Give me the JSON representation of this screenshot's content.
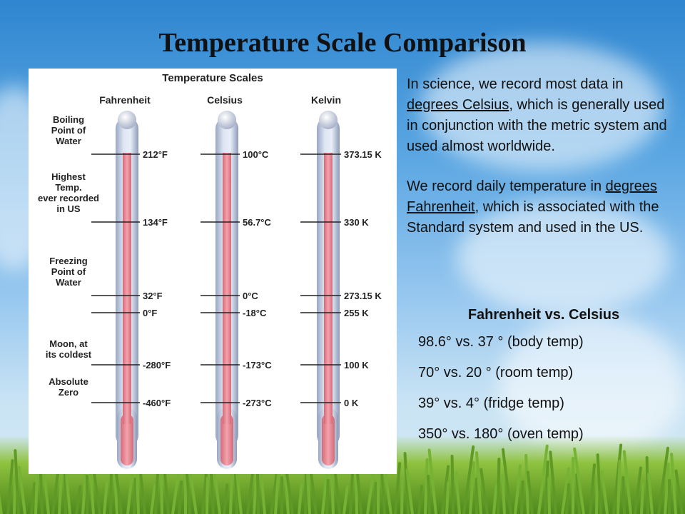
{
  "slide": {
    "title": "Temperature Scale Comparison"
  },
  "diagram": {
    "title": "Temperature Scales",
    "scales": [
      "Fahrenheit",
      "Celsius",
      "Kelvin"
    ],
    "rows": [
      {
        "label": [
          "Boiling",
          "Point of",
          "Water"
        ],
        "values": [
          "212°F",
          "100°C",
          "373.15 K"
        ]
      },
      {
        "label": [
          "Highest",
          "Temp.",
          "ever recorded",
          "in US"
        ],
        "values": [
          "134°F",
          "56.7°C",
          "330 K"
        ]
      },
      {
        "label": [
          "Freezing",
          "Point of",
          "Water"
        ],
        "values": [
          "32°F",
          "0°C",
          "273.15 K"
        ]
      },
      {
        "label": [],
        "values": [
          "0°F",
          "-18°C",
          "255 K"
        ]
      },
      {
        "label": [
          "Moon, at",
          "its coldest"
        ],
        "values": [
          "-280°F",
          "-173°C",
          "100 K"
        ]
      },
      {
        "label": [
          "Absolute",
          "Zero"
        ],
        "values": [
          "-460°F",
          "-273°C",
          "0 K"
        ]
      }
    ]
  },
  "text_panel": {
    "p1_a": "In science, we record most data in ",
    "p1_link": "degrees Celsius",
    "p1_b": ", which is generally used in conjunction with the metric system and used almost worldwide.",
    "p2_a": "We record daily temperature in ",
    "p2_link": "degrees Fahrenheit",
    "p2_b": ", which is associated with the Standard system and used in the US."
  },
  "comparison": {
    "title": "Fahrenheit vs. Celsius",
    "rows": [
      "98.6° vs. 37 ° (body temp)",
      "70° vs. 20 ° (room temp)",
      "39° vs. 4° (fridge temp)",
      "350° vs. 180° (oven temp)"
    ]
  }
}
